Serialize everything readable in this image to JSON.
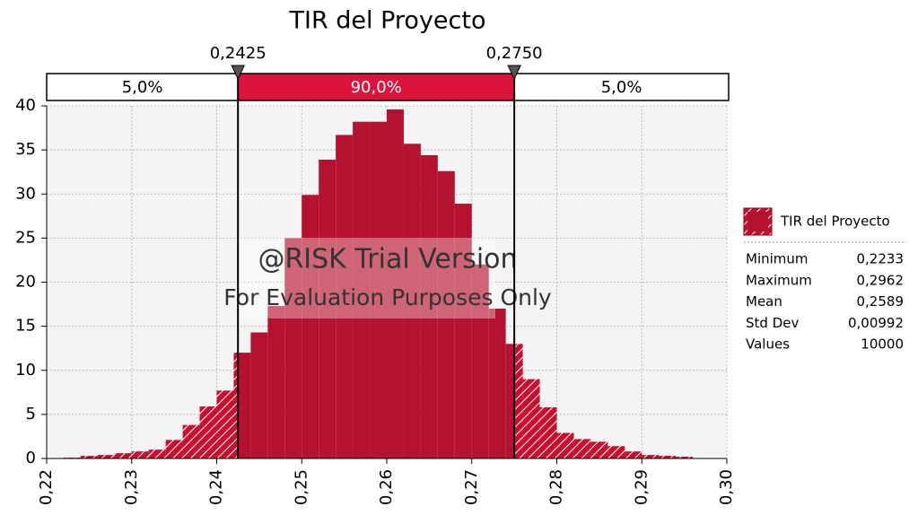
{
  "chart_data": {
    "type": "histogram",
    "title": "TIR del Proyecto",
    "bins": [
      0.222,
      0.224,
      0.226,
      0.228,
      0.23,
      0.232,
      0.234,
      0.236,
      0.238,
      0.24,
      0.242,
      0.244,
      0.246,
      0.248,
      0.25,
      0.252,
      0.254,
      0.256,
      0.258,
      0.26,
      0.262,
      0.264,
      0.266,
      0.268,
      0.27,
      0.272,
      0.274,
      0.276,
      0.278,
      0.28,
      0.282,
      0.284,
      0.286,
      0.288,
      0.29,
      0.292,
      0.294,
      0.296,
      0.298
    ],
    "values": [
      0.1,
      0.3,
      0.4,
      0.6,
      0.8,
      1.0,
      2.1,
      3.8,
      5.9,
      7.7,
      12,
      14.3,
      17.3,
      25,
      29.9,
      33.9,
      36.7,
      38.2,
      38.2,
      39.6,
      35.7,
      34.4,
      32.6,
      28.9,
      22,
      17,
      13,
      9,
      5.8,
      2.9,
      2.2,
      1.9,
      1.4,
      0.8,
      0.4,
      0.3,
      0.2,
      0.05
    ],
    "color": "#c8102e",
    "xlim": [
      0.22,
      0.3
    ],
    "xticks": [
      {
        "value": 0.22,
        "label": "0,22"
      },
      {
        "value": 0.23,
        "label": "0,23"
      },
      {
        "value": 0.24,
        "label": "0,24"
      },
      {
        "value": 0.25,
        "label": "0,25"
      },
      {
        "value": 0.26,
        "label": "0,26"
      },
      {
        "value": 0.27,
        "label": "0,27"
      },
      {
        "value": 0.28,
        "label": "0,28"
      },
      {
        "value": 0.29,
        "label": "0,29"
      },
      {
        "value": 0.3,
        "label": "0,30"
      }
    ],
    "ylim": [
      0,
      40
    ],
    "yticks": [
      0,
      5,
      10,
      15,
      20,
      25,
      30,
      35,
      40
    ],
    "grid": true,
    "delimiters": [
      {
        "value": 0.2425,
        "label": "0,2425"
      },
      {
        "value": 0.275,
        "label": "0,2750"
      }
    ],
    "regions": [
      {
        "value": 5,
        "label": "5,0%"
      },
      {
        "value": 90,
        "label": "90,0%"
      },
      {
        "value": 5,
        "label": "5,0%"
      }
    ],
    "legend": {
      "name": "TIR del Proyecto"
    },
    "stats": {
      "labels": [
        "Minimum",
        "Maximum",
        "Mean",
        "Std Dev",
        "Values"
      ],
      "values": [
        "0,2233",
        "0,2962",
        "0,2589",
        "0,00992",
        "10000"
      ]
    },
    "watermark": [
      "@RISK Trial Version",
      "For Evaluation Purposes Only"
    ]
  }
}
